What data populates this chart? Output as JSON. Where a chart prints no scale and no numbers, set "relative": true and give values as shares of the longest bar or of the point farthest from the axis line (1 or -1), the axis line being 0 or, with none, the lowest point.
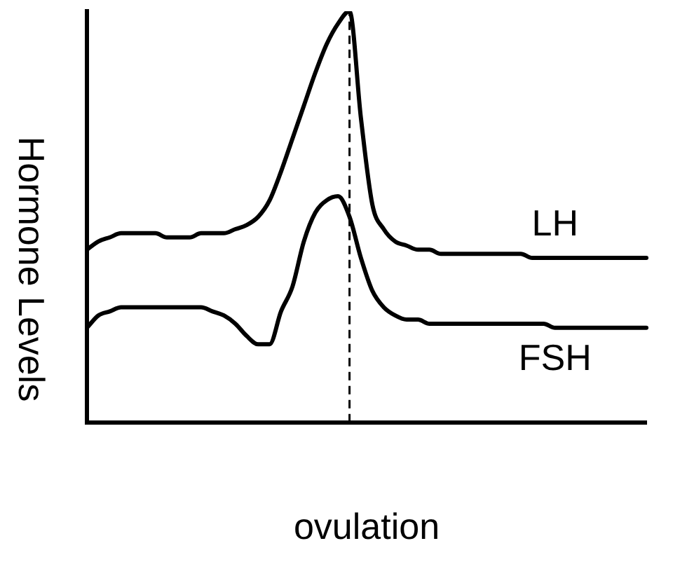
{
  "chart_data": {
    "type": "line",
    "relative": true,
    "xlabel": "ovulation",
    "ylabel": "Hormone Levels",
    "grid": false,
    "legend": false,
    "marker": "none",
    "line_style": "solid",
    "categories": [
      null,
      null,
      null,
      null,
      null,
      null,
      null,
      null,
      null,
      null,
      null,
      null,
      null,
      null,
      null,
      null,
      null,
      null,
      null,
      null,
      null,
      null,
      null,
      null,
      null,
      null,
      null,
      null,
      null,
      null,
      null,
      null,
      null,
      null,
      null,
      null,
      null,
      null,
      null,
      null,
      null,
      null,
      null,
      null,
      null,
      null,
      null,
      null,
      null,
      null
    ],
    "series": [
      {
        "name": "LH",
        "color": "#000000",
        "values": [
          0.42,
          0.44,
          0.45,
          0.46,
          0.46,
          0.46,
          0.46,
          0.45,
          0.45,
          0.45,
          0.46,
          0.46,
          0.46,
          0.47,
          0.48,
          0.5,
          0.54,
          0.61,
          0.69,
          0.77,
          0.85,
          0.92,
          0.97,
          1,
          0.74,
          0.53,
          0.47,
          0.44,
          0.43,
          0.42,
          0.42,
          0.41,
          0.41,
          0.41,
          0.41,
          0.41,
          0.41,
          0.41,
          0.41,
          0.4,
          0.4,
          0.4,
          0.4,
          0.4,
          0.4,
          0.4,
          0.4,
          0.4,
          0.4,
          0.4
        ]
      },
      {
        "name": "FSH",
        "color": "#000000",
        "values": [
          0.23,
          0.26,
          0.27,
          0.28,
          0.28,
          0.28,
          0.28,
          0.28,
          0.28,
          0.28,
          0.28,
          0.27,
          0.26,
          0.24,
          0.21,
          0.19,
          0.19,
          0.27,
          0.33,
          0.44,
          0.51,
          0.54,
          0.55,
          0.5,
          0.4,
          0.32,
          0.28,
          0.26,
          0.25,
          0.25,
          0.24,
          0.24,
          0.24,
          0.24,
          0.24,
          0.24,
          0.24,
          0.24,
          0.24,
          0.24,
          0.24,
          0.23,
          0.23,
          0.23,
          0.23,
          0.23,
          0.23,
          0.23,
          0.23,
          0.23
        ]
      }
    ]
  }
}
